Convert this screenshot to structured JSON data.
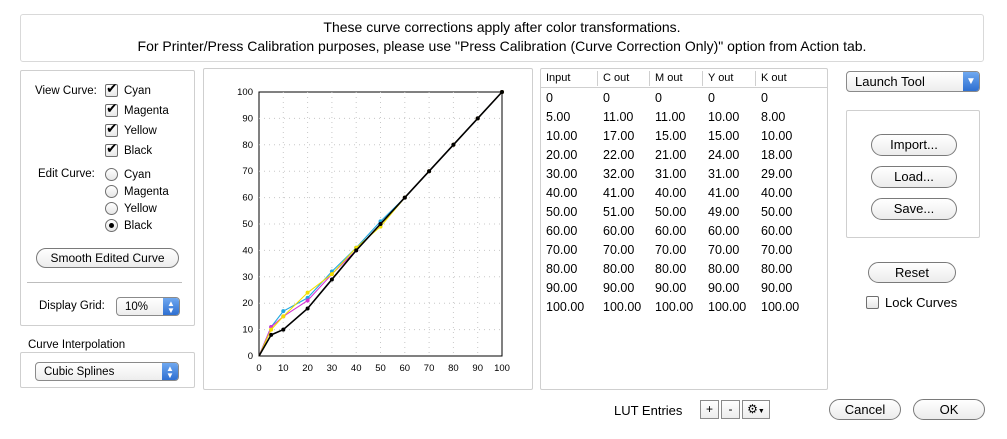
{
  "header": {
    "line1": "These curve corrections apply after color transformations.",
    "line2": "For Printer/Press Calibration purposes, please use \"Press Calibration (Curve Correction Only)\" option from Action tab."
  },
  "view_curve": {
    "label": "View Curve:",
    "items": [
      {
        "label": "Cyan",
        "checked": true
      },
      {
        "label": "Magenta",
        "checked": true
      },
      {
        "label": "Yellow",
        "checked": true
      },
      {
        "label": "Black",
        "checked": true
      }
    ]
  },
  "edit_curve": {
    "label": "Edit Curve:",
    "items": [
      {
        "label": "Cyan",
        "selected": false
      },
      {
        "label": "Magenta",
        "selected": false
      },
      {
        "label": "Yellow",
        "selected": false
      },
      {
        "label": "Black",
        "selected": true
      }
    ]
  },
  "smooth_button": "Smooth Edited Curve",
  "display_grid": {
    "label": "Display Grid:",
    "value": "10%"
  },
  "interpolation": {
    "label": "Curve Interpolation",
    "value": "Cubic Splines"
  },
  "chart_data": {
    "type": "line",
    "xlim": [
      0,
      100
    ],
    "ylim": [
      0,
      100
    ],
    "x_ticks": [
      "0",
      "10",
      "20",
      "30",
      "40",
      "50",
      "60",
      "70",
      "80",
      "90",
      "100"
    ],
    "y_ticks": [
      "0",
      "10",
      "20",
      "30",
      "40",
      "50",
      "60",
      "70",
      "80",
      "90",
      "100"
    ],
    "grid": "dotted, 10%",
    "x": [
      0,
      5,
      10,
      20,
      30,
      40,
      50,
      60,
      70,
      80,
      90,
      100
    ],
    "series": [
      {
        "color": "#1fa8e0",
        "values": [
          0,
          11,
          17,
          22,
          32,
          41,
          51,
          60,
          70,
          80,
          90,
          100
        ]
      },
      {
        "color": "#d633d6",
        "values": [
          0,
          11,
          15,
          21,
          31,
          40,
          50,
          60,
          70,
          80,
          90,
          100
        ]
      },
      {
        "color": "#f2e000",
        "values": [
          0,
          10,
          15,
          24,
          31,
          41,
          49,
          60,
          70,
          80,
          90,
          100
        ]
      },
      {
        "color": "#000000",
        "values": [
          0,
          8,
          10,
          18,
          29,
          40,
          50,
          60,
          70,
          80,
          90,
          100
        ]
      }
    ]
  },
  "table": {
    "headers": [
      "Input",
      "C out",
      "M out",
      "Y out",
      "K out"
    ],
    "rows": [
      [
        "0",
        "0",
        "0",
        "0",
        "0"
      ],
      [
        "5.00",
        "11.00",
        "11.00",
        "10.00",
        "8.00"
      ],
      [
        "10.00",
        "17.00",
        "15.00",
        "15.00",
        "10.00"
      ],
      [
        "20.00",
        "22.00",
        "21.00",
        "24.00",
        "18.00"
      ],
      [
        "30.00",
        "32.00",
        "31.00",
        "31.00",
        "29.00"
      ],
      [
        "40.00",
        "41.00",
        "40.00",
        "41.00",
        "40.00"
      ],
      [
        "50.00",
        "51.00",
        "50.00",
        "49.00",
        "50.00"
      ],
      [
        "60.00",
        "60.00",
        "60.00",
        "60.00",
        "60.00"
      ],
      [
        "70.00",
        "70.00",
        "70.00",
        "70.00",
        "70.00"
      ],
      [
        "80.00",
        "80.00",
        "80.00",
        "80.00",
        "80.00"
      ],
      [
        "90.00",
        "90.00",
        "90.00",
        "90.00",
        "90.00"
      ],
      [
        "100.00",
        "100.00",
        "100.00",
        "100.00",
        "100.00"
      ]
    ]
  },
  "launch_tool": "Launch Tool",
  "buttons": {
    "import": "Import...",
    "load": "Load...",
    "save": "Save...",
    "reset": "Reset",
    "cancel": "Cancel",
    "ok": "OK"
  },
  "lock_curves": {
    "label": "Lock Curves",
    "checked": false
  },
  "lut": {
    "label": "LUT Entries",
    "plus": "+",
    "minus": "-"
  },
  "icons": {
    "gear": "gear-icon",
    "dropdown": "chevron-down-icon"
  }
}
